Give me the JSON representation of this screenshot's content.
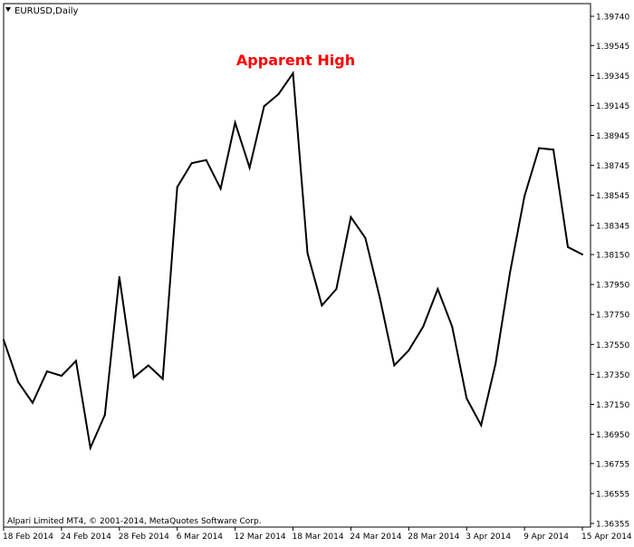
{
  "window": {
    "title": "EURUSD,Daily",
    "menu_icon": "triangle-down-icon",
    "copyright": "Alpari Limited MT4, © 2001-2014, MetaQuotes Software Corp."
  },
  "annotation": {
    "label": "Apparent High",
    "color": "#ff0000"
  },
  "chart_data": {
    "type": "line",
    "title": "EURUSD,Daily",
    "xlabel": "",
    "ylabel": "",
    "ylim": [
      1.36355,
      1.3974
    ],
    "grid": false,
    "line_color": "#000000",
    "series": [
      {
        "values": [
          1.3758,
          1.373,
          1.3716,
          1.3737,
          1.3734,
          1.3744,
          1.3686,
          1.3708,
          1.38,
          1.3733,
          1.3741,
          1.3732,
          1.386,
          1.3876,
          1.3878,
          1.3859,
          1.3903,
          1.3873,
          1.3914,
          1.3922,
          1.3936,
          1.3816,
          1.3781,
          1.3792,
          1.384,
          1.3826,
          1.3786,
          1.3741,
          1.3751,
          1.3767,
          1.3792,
          1.3767,
          1.3719,
          1.3701,
          1.3742,
          1.3803,
          1.3854,
          1.3886,
          1.3885,
          1.382,
          1.3815
        ]
      }
    ],
    "x_tick_labels": [
      "18 Feb 2014",
      "24 Feb 2014",
      "28 Feb 2014",
      "6 Mar 2014",
      "12 Mar 2014",
      "18 Mar 2014",
      "24 Mar 2014",
      "28 Mar 2014",
      "3 Apr 2014",
      "9 Apr 2014",
      "15 Apr 2014"
    ],
    "x_tick_index": [
      0,
      4,
      8,
      12,
      16,
      20,
      24,
      28,
      32,
      36,
      40
    ],
    "y_ticks": [
      "1.39740",
      "1.39545",
      "1.39345",
      "1.39145",
      "1.38945",
      "1.38745",
      "1.38545",
      "1.38345",
      "1.38150",
      "1.37950",
      "1.37750",
      "1.37550",
      "1.37350",
      "1.37150",
      "1.36950",
      "1.36755",
      "1.36555",
      "1.36355"
    ],
    "annotation_index": 20
  }
}
